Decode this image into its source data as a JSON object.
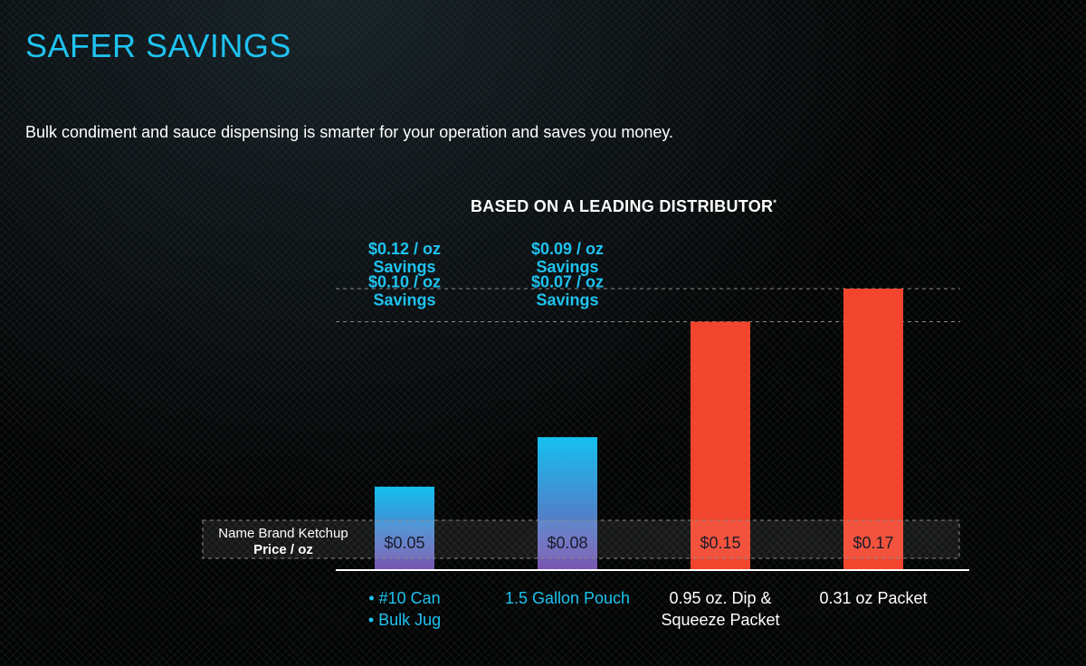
{
  "page": {
    "title": "SAFER SAVINGS",
    "subtitle": "Bulk condiment and sauce dispensing is smarter for your operation and saves you money.",
    "chart_heading": "BASED ON A LEADING DISTRIBUTOR",
    "chart_heading_mark": "*"
  },
  "colors": {
    "title": "#1ec3f0",
    "accent_blue": "#1ec3f0",
    "bulk_bar_top": "#14c0f0",
    "bulk_bar_bottom": "#7a56b0",
    "packet_bar": "#f2452d",
    "text": "#ffffff",
    "dashed": "#8a8a8a"
  },
  "chart_data": {
    "type": "bar",
    "title": "BASED ON A LEADING DISTRIBUTOR*",
    "categories": [
      "#10 Can / Bulk Jug",
      "1.5 Gallon Pouch",
      "0.95 oz. Dip & Squeeze Packet",
      "0.31 oz Packet"
    ],
    "category_label_lines": [
      [
        "• #10 Can",
        "• Bulk Jug"
      ],
      [
        "1.5 Gallon Pouch"
      ],
      [
        "0.95 oz. Dip &",
        "Squeeze Packet"
      ],
      [
        "0.31 oz Packet"
      ]
    ],
    "values": [
      0.05,
      0.08,
      0.15,
      0.17
    ],
    "value_labels": [
      "$0.05",
      "$0.08",
      "$0.15",
      "$0.17"
    ],
    "bar_styles": [
      "bulk",
      "bulk",
      "packet",
      "packet"
    ],
    "ylim": [
      0,
      0.17
    ],
    "price_band_label": [
      "Name Brand Ketchup",
      "Price / oz"
    ],
    "savings_annotations": [
      {
        "category_index": 0,
        "compare_index": 3,
        "lines": [
          "$0.12 / oz",
          "Savings"
        ]
      },
      {
        "category_index": 1,
        "compare_index": 3,
        "lines": [
          "$0.09 / oz",
          "Savings"
        ]
      },
      {
        "category_index": 0,
        "compare_index": 2,
        "lines": [
          "$0.10 / oz",
          "Savings"
        ]
      },
      {
        "category_index": 1,
        "compare_index": 2,
        "lines": [
          "$0.07 / oz",
          "Savings"
        ]
      }
    ],
    "reference_lines": [
      {
        "value": 0.17,
        "style": "dashed"
      },
      {
        "value": 0.15,
        "style": "dashed"
      }
    ]
  }
}
